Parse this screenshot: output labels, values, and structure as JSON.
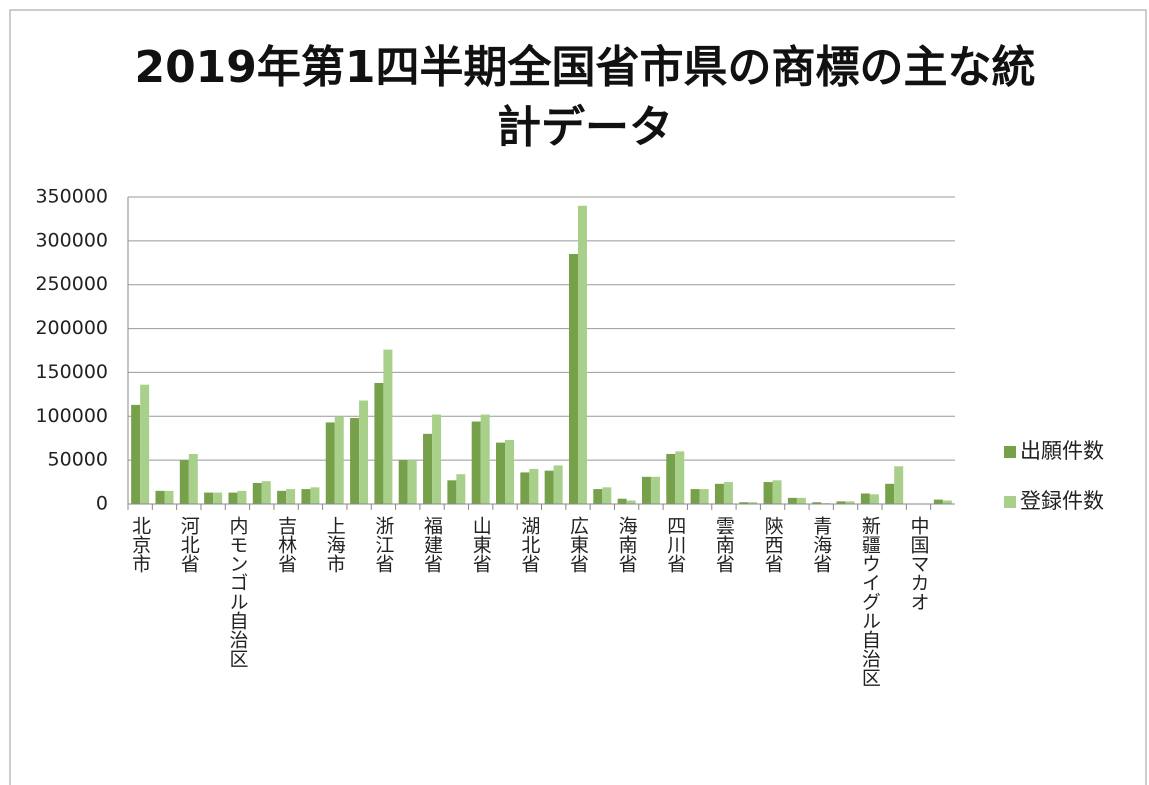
{
  "chart_data": {
    "type": "bar",
    "title": "2019年第1四半期全国省市県の商標の主な統計データ",
    "categories": [
      "北京市",
      null,
      "河北省",
      null,
      "内モンゴル自治区",
      null,
      "吉林省",
      null,
      "上海市",
      null,
      "浙江省",
      null,
      "福建省",
      null,
      "山東省",
      null,
      "湖北省",
      null,
      "広東省",
      null,
      "海南省",
      null,
      "四川省",
      null,
      "雲南省",
      null,
      "陝西省",
      null,
      "青海省",
      null,
      "新疆ウイグル自治区",
      null,
      "中国マカオ",
      null
    ],
    "series": [
      {
        "name": "出願件数",
        "color": "#77a04a",
        "values": [
          113000,
          15000,
          50000,
          13000,
          13000,
          24000,
          15000,
          17000,
          93000,
          98000,
          138000,
          50000,
          80000,
          27000,
          94000,
          70000,
          36000,
          38000,
          285000,
          17000,
          6000,
          31000,
          57000,
          17000,
          23000,
          2000,
          25000,
          7000,
          2000,
          3000,
          12000,
          23000,
          500,
          5000
        ]
      },
      {
        "name": "登録件数",
        "color": "#a9d08a",
        "values": [
          136000,
          15000,
          57000,
          13000,
          15000,
          26000,
          17000,
          19000,
          100000,
          118000,
          176000,
          50000,
          102000,
          34000,
          102000,
          73000,
          40000,
          44000,
          340000,
          19000,
          4000,
          31000,
          60000,
          17000,
          25000,
          2000,
          27000,
          7000,
          1000,
          3000,
          11000,
          43000,
          500,
          4000
        ]
      }
    ],
    "ylim": [
      0,
      350000
    ],
    "yticks": [
      0,
      50000,
      100000,
      150000,
      200000,
      250000,
      300000,
      350000
    ],
    "grid": true,
    "legend": "right"
  }
}
